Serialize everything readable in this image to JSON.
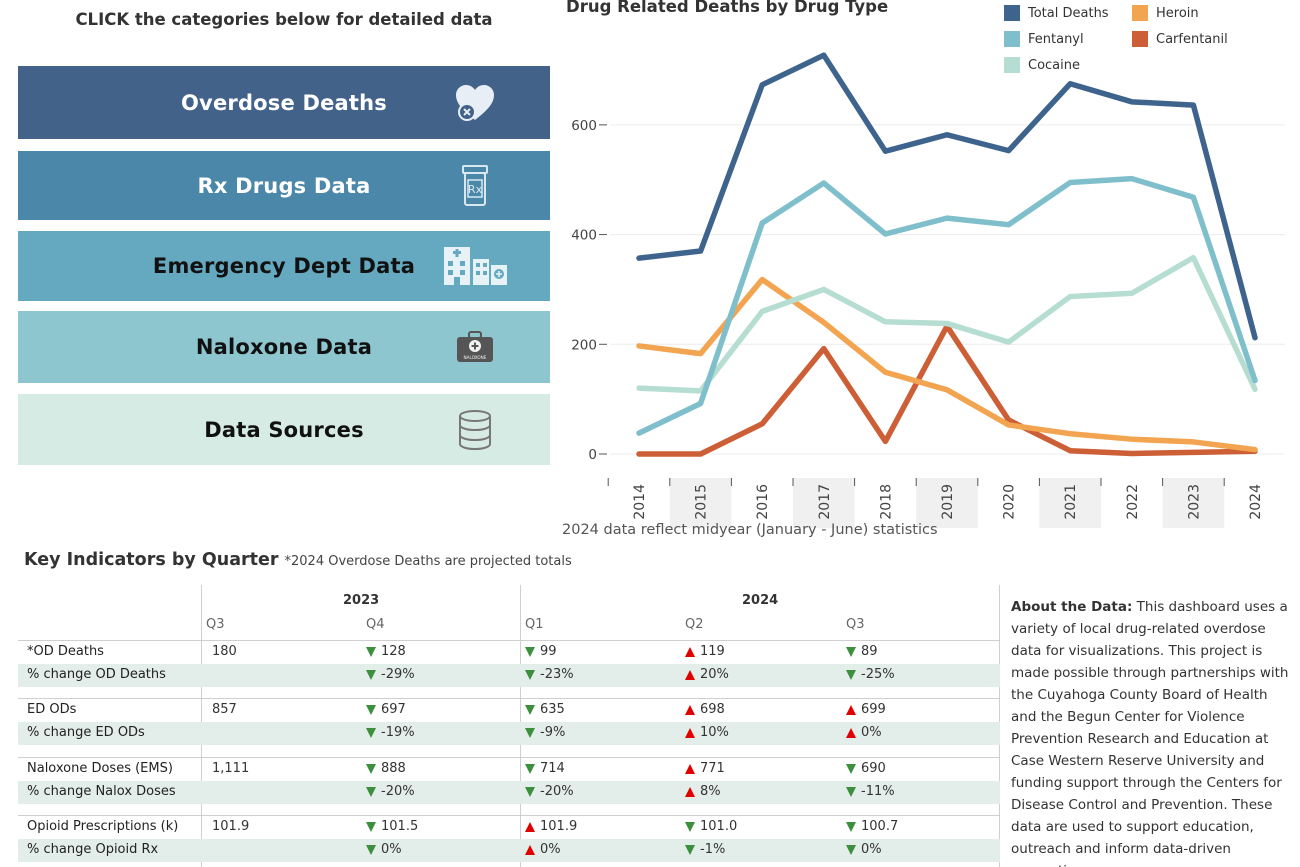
{
  "nav": {
    "title": "CLICK the categories below for detailed data",
    "buttons": [
      {
        "label": "Overdose Deaths",
        "icon": "heart-x-icon",
        "bg": "#43628a",
        "fg": "#ffffff"
      },
      {
        "label": "Rx Drugs Data",
        "icon": "rx-bottle-icon",
        "bg": "#4b87a8",
        "fg": "#ffffff"
      },
      {
        "label": "Emergency Dept Data",
        "icon": "hospital-icon",
        "bg": "#65a9c0",
        "fg": "#111111"
      },
      {
        "label": "Naloxone Data",
        "icon": "naloxone-kit-icon",
        "bg": "#8ec6cf",
        "fg": "#111111"
      },
      {
        "label": "Data Sources",
        "icon": "database-icon",
        "bg": "#d6ebe4",
        "fg": "#111111"
      }
    ]
  },
  "chart": {
    "note": "2024 data reflect midyear (January - June) statistics"
  },
  "chart_data": {
    "type": "line",
    "title": "Drug Related Deaths by Drug Type",
    "xlabel": "",
    "ylabel": "",
    "ylim": [
      0,
      700
    ],
    "y_ticks": [
      0,
      200,
      400,
      600
    ],
    "x": [
      "2014",
      "2015",
      "2016",
      "2017",
      "2018",
      "2019",
      "2020",
      "2021",
      "2022",
      "2023",
      "2024"
    ],
    "grid": true,
    "legend_position": "top-right",
    "series": [
      {
        "name": "Total Deaths",
        "color": "#3e648e",
        "values": [
          357,
          370,
          673,
          727,
          552,
          582,
          553,
          675,
          642,
          636,
          212
        ]
      },
      {
        "name": "Fentanyl",
        "color": "#7fbfcc",
        "values": [
          38,
          92,
          421,
          494,
          401,
          430,
          418,
          495,
          502,
          468,
          134
        ]
      },
      {
        "name": "Cocaine",
        "color": "#b6ddd1",
        "values": [
          120,
          115,
          260,
          300,
          241,
          238,
          204,
          287,
          293,
          358,
          118
        ]
      },
      {
        "name": "Heroin",
        "color": "#f2a450",
        "values": [
          197,
          183,
          318,
          240,
          149,
          117,
          53,
          37,
          27,
          22,
          8
        ]
      },
      {
        "name": "Carfentanil",
        "color": "#cd5f37",
        "values": [
          0,
          0,
          55,
          192,
          23,
          233,
          62,
          6,
          1,
          3,
          5
        ]
      }
    ]
  },
  "indicators": {
    "title": "Key Indicators by Quarter",
    "subtitle": "*2024 Overdose Deaths are projected totals",
    "years": [
      "2023",
      "2024"
    ],
    "quarters": [
      "Q3",
      "Q4",
      "Q1",
      "Q2",
      "Q3"
    ],
    "rows": [
      {
        "label": "*OD Deaths",
        "cells": [
          {
            "t": "180",
            "a": ""
          },
          {
            "t": "128",
            "a": "down"
          },
          {
            "t": "99",
            "a": "down"
          },
          {
            "t": "119",
            "a": "up"
          },
          {
            "t": "89",
            "a": "down"
          }
        ]
      },
      {
        "label": "% change OD Deaths",
        "cells": [
          {
            "t": "",
            "a": ""
          },
          {
            "t": "-29%",
            "a": "down"
          },
          {
            "t": "-23%",
            "a": "down"
          },
          {
            "t": "20%",
            "a": "up"
          },
          {
            "t": "-25%",
            "a": "down"
          }
        ]
      },
      {
        "label": "ED ODs",
        "cells": [
          {
            "t": "857",
            "a": ""
          },
          {
            "t": "697",
            "a": "down"
          },
          {
            "t": "635",
            "a": "down"
          },
          {
            "t": "698",
            "a": "up"
          },
          {
            "t": "699",
            "a": "up"
          }
        ]
      },
      {
        "label": "% change ED ODs",
        "cells": [
          {
            "t": "",
            "a": ""
          },
          {
            "t": "-19%",
            "a": "down"
          },
          {
            "t": "-9%",
            "a": "down"
          },
          {
            "t": "10%",
            "a": "up"
          },
          {
            "t": "0%",
            "a": "up"
          }
        ]
      },
      {
        "label": "Naloxone Doses (EMS)",
        "cells": [
          {
            "t": "1,111",
            "a": ""
          },
          {
            "t": "888",
            "a": "down"
          },
          {
            "t": "714",
            "a": "down"
          },
          {
            "t": "771",
            "a": "up"
          },
          {
            "t": "690",
            "a": "down"
          }
        ]
      },
      {
        "label": "% change Nalox Doses",
        "cells": [
          {
            "t": "",
            "a": ""
          },
          {
            "t": "-20%",
            "a": "down"
          },
          {
            "t": "-20%",
            "a": "down"
          },
          {
            "t": "8%",
            "a": "up"
          },
          {
            "t": "-11%",
            "a": "down"
          }
        ]
      },
      {
        "label": "Opioid Prescriptions (k)",
        "cells": [
          {
            "t": "101.9",
            "a": ""
          },
          {
            "t": "101.5",
            "a": "down"
          },
          {
            "t": "101.9",
            "a": "up"
          },
          {
            "t": "101.0",
            "a": "down"
          },
          {
            "t": "100.7",
            "a": "down"
          }
        ]
      },
      {
        "label": "% change Opioid Rx",
        "cells": [
          {
            "t": "",
            "a": ""
          },
          {
            "t": "0%",
            "a": "down"
          },
          {
            "t": "0%",
            "a": "up"
          },
          {
            "t": "-1%",
            "a": "down"
          },
          {
            "t": "0%",
            "a": "down"
          }
        ]
      }
    ]
  },
  "about": {
    "heading": "About the Data:",
    "text": "This dashboard uses a variety of local drug-related overdose data for visualizations.  This project is made possible through partnerships with the Cuyahoga County Board of Health and the Begun Center for Violence Prevention Research and Education at Case Western Reserve University and funding support through the Centers for Disease Control and Prevention.  These data are used to support education, outreach and inform data-driven prevention"
  }
}
